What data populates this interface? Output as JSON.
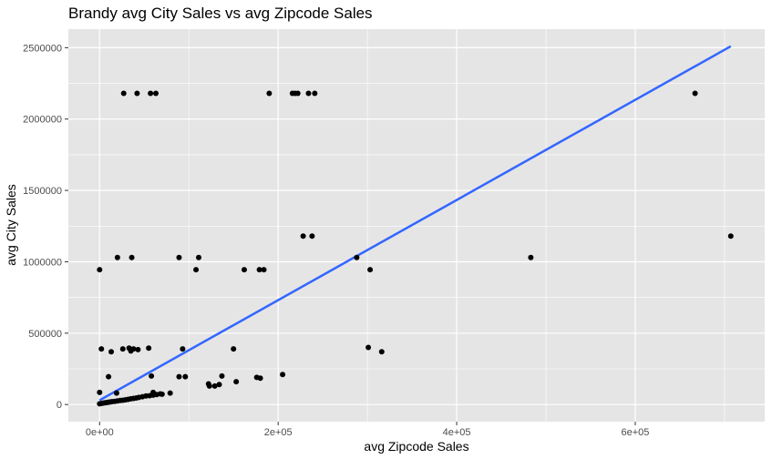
{
  "chart_data": {
    "type": "scatter",
    "title": "Brandy avg City Sales vs avg Zipcode Sales",
    "xlabel": "avg Zipcode Sales",
    "ylabel": "avg City Sales",
    "xlim": [
      -35000,
      745000
    ],
    "ylim": [
      -120000,
      2630000
    ],
    "x_ticks": [
      0,
      200000,
      400000,
      600000
    ],
    "x_tick_labels": [
      "0e+00",
      "2e+05",
      "4e+05",
      "6e+05"
    ],
    "y_ticks": [
      0,
      500000,
      1000000,
      1500000,
      2000000,
      2500000
    ],
    "y_tick_labels": [
      "0",
      "500000",
      "1000000",
      "1500000",
      "2000000",
      "2500000"
    ],
    "grid": true,
    "colors": {
      "panel": "#e5e5e5",
      "grid_major": "#ffffff",
      "point": "#000000",
      "trend": "#3366ff"
    },
    "points": [
      [
        27000,
        2180000
      ],
      [
        42000,
        2180000
      ],
      [
        57000,
        2180000
      ],
      [
        63000,
        2180000
      ],
      [
        190000,
        2180000
      ],
      [
        216000,
        2180000
      ],
      [
        219000,
        2180000
      ],
      [
        222000,
        2180000
      ],
      [
        234000,
        2180000
      ],
      [
        241000,
        2180000
      ],
      [
        667000,
        2180000
      ],
      [
        228000,
        1180000
      ],
      [
        238000,
        1180000
      ],
      [
        707000,
        1180000
      ],
      [
        20000,
        1030000
      ],
      [
        36000,
        1030000
      ],
      [
        89000,
        1030000
      ],
      [
        111000,
        1030000
      ],
      [
        288000,
        1030000
      ],
      [
        483000,
        1030000
      ],
      [
        0,
        945000
      ],
      [
        108000,
        945000
      ],
      [
        162000,
        945000
      ],
      [
        179000,
        945000
      ],
      [
        184000,
        945000
      ],
      [
        303000,
        945000
      ],
      [
        2000,
        390000
      ],
      [
        26000,
        390000
      ],
      [
        33000,
        395000
      ],
      [
        35000,
        375000
      ],
      [
        38000,
        390000
      ],
      [
        43000,
        385000
      ],
      [
        55000,
        395000
      ],
      [
        93000,
        390000
      ],
      [
        150000,
        390000
      ],
      [
        301000,
        400000
      ],
      [
        316000,
        370000
      ],
      [
        13000,
        370000
      ],
      [
        10000,
        195000
      ],
      [
        58000,
        200000
      ],
      [
        89000,
        195000
      ],
      [
        96000,
        195000
      ],
      [
        137000,
        200000
      ],
      [
        176000,
        190000
      ],
      [
        180000,
        185000
      ],
      [
        205000,
        210000
      ],
      [
        122000,
        145000
      ],
      [
        123000,
        130000
      ],
      [
        129000,
        130000
      ],
      [
        134000,
        140000
      ],
      [
        153000,
        160000
      ],
      [
        0,
        85000
      ],
      [
        19000,
        80000
      ],
      [
        60000,
        85000
      ],
      [
        68000,
        75000
      ],
      [
        79000,
        80000
      ],
      [
        0,
        5000
      ],
      [
        2000,
        8000
      ],
      [
        4000,
        10000
      ],
      [
        6000,
        12000
      ],
      [
        8000,
        14000
      ],
      [
        10000,
        16000
      ],
      [
        12000,
        18000
      ],
      [
        14000,
        20000
      ],
      [
        17000,
        22000
      ],
      [
        20000,
        25000
      ],
      [
        23000,
        28000
      ],
      [
        26000,
        30000
      ],
      [
        29000,
        33000
      ],
      [
        32000,
        36000
      ],
      [
        35000,
        40000
      ],
      [
        38000,
        43000
      ],
      [
        41000,
        46000
      ],
      [
        44000,
        50000
      ],
      [
        48000,
        55000
      ],
      [
        52000,
        60000
      ],
      [
        56000,
        62000
      ],
      [
        60000,
        66000
      ],
      [
        64000,
        70000
      ],
      [
        70000,
        72000
      ]
    ],
    "trend_line": {
      "x": [
        0,
        707000
      ],
      "y": [
        30000,
        2510000
      ]
    }
  }
}
